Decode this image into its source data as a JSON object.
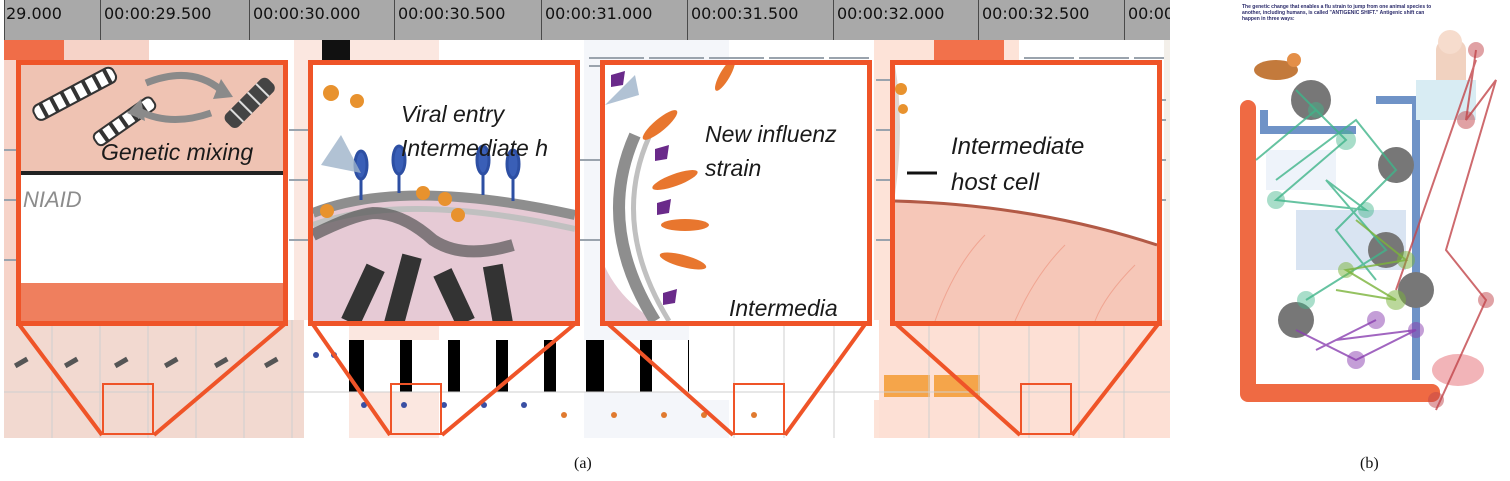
{
  "figure": {
    "panel_a_caption": "(a)",
    "panel_b_caption": "(b)"
  },
  "timeline": {
    "ticks": [
      "29.000",
      "00:00:29.500",
      "00:00:30.000",
      "00:00:30.500",
      "00:00:31.000",
      "00:00:31.500",
      "00:00:32.000",
      "00:00:32.500",
      "00:00"
    ]
  },
  "magnifiers": [
    {
      "caption": "Genetic mixing",
      "sub": "NIAID"
    },
    {
      "caption": "Viral entry\nIntermediate h"
    },
    {
      "caption": "New influenz\nstrain",
      "sub": "Intermedia"
    },
    {
      "caption": "Intermediate\nhost cell"
    }
  ],
  "colors": {
    "accent": "#ef5428",
    "ruler": "#a9a9a9",
    "cell_pink": "#f6c7b8"
  },
  "infographic": {
    "intro": "The genetic change that enables a flu strain to jump from one animal species to another, including humans, is called \"ANTIGENIC SHIFT.\" Antigenic shift can happen in three ways:"
  }
}
